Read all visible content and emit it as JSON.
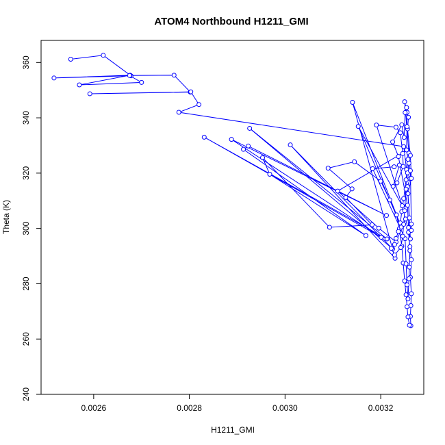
{
  "chart_data": {
    "type": "line",
    "title": "ATOM4 Northbound H1211_GMI",
    "xlabel": "H1211_GMI",
    "ylabel": "Theta (K)",
    "xlim": [
      0.00249,
      0.00329
    ],
    "ylim": [
      240,
      368
    ],
    "xticks": [
      "0.0026",
      "0.0028",
      "0.0030",
      "0.0032"
    ],
    "xtick_values": [
      0.0026,
      0.0028,
      0.003,
      0.0032
    ],
    "yticks": [
      "240",
      "260",
      "280",
      "300",
      "320",
      "340",
      "360"
    ],
    "ytick_values": [
      240,
      260,
      280,
      300,
      320,
      340,
      360
    ],
    "grid": false,
    "series": [
      {
        "color": "#0000ff",
        "marker": "open-circle",
        "points": [
          [
            0.002552,
            361.2
          ],
          [
            0.00262,
            362.6
          ],
          [
            0.002678,
            355.2
          ],
          [
            0.002517,
            354.4
          ],
          [
            0.002676,
            355.4
          ],
          [
            0.00257,
            351.9
          ],
          [
            0.0027,
            352.8
          ],
          [
            0.002675,
            355.3
          ],
          [
            0.002768,
            355.4
          ],
          [
            0.002802,
            349.3
          ],
          [
            0.002592,
            348.7
          ],
          [
            0.002803,
            349.4
          ],
          [
            0.00282,
            344.8
          ],
          [
            0.002778,
            342.0
          ],
          [
            0.003248,
            329.6
          ],
          [
            0.003254,
            321.3
          ],
          [
            0.003261,
            318.0
          ],
          [
            0.003256,
            315.1
          ],
          [
            0.003262,
            296.2
          ],
          [
            0.003252,
            303.4
          ],
          [
            0.003232,
            295.1
          ],
          [
            0.003196,
            300.1
          ],
          [
            0.00311,
            313.5
          ],
          [
            0.003256,
            328.3
          ],
          [
            0.003259,
            327.2
          ],
          [
            0.00325,
            345.8
          ],
          [
            0.003255,
            342.0
          ],
          [
            0.003258,
            340.2
          ],
          [
            0.003256,
            336.0
          ],
          [
            0.003262,
            326.4
          ],
          [
            0.003264,
            318.1
          ],
          [
            0.003257,
            312.6
          ],
          [
            0.00326,
            303.8
          ],
          [
            0.003258,
            298.6
          ],
          [
            0.003261,
            293.4
          ],
          [
            0.003264,
            288.7
          ],
          [
            0.003262,
            282.3
          ],
          [
            0.003264,
            276.4
          ],
          [
            0.003263,
            272.1
          ],
          [
            0.003262,
            268.2
          ],
          [
            0.003263,
            264.8
          ],
          [
            0.00326,
            265.0
          ],
          [
            0.003257,
            268.0
          ],
          [
            0.003255,
            271.7
          ],
          [
            0.003253,
            276.0
          ],
          [
            0.00325,
            281.0
          ],
          [
            0.003247,
            287.5
          ],
          [
            0.003244,
            293.6
          ],
          [
            0.003239,
            299.9
          ],
          [
            0.003233,
            304.9
          ],
          [
            0.003219,
            310.3
          ],
          [
            0.0032,
            317.1
          ],
          [
            0.003145,
            324.1
          ],
          [
            0.00309,
            321.8
          ],
          [
            0.00314,
            314.3
          ],
          [
            0.003127,
            311.2
          ],
          [
            0.003182,
            301.3
          ],
          [
            0.003093,
            300.4
          ],
          [
            0.002953,
            325.6
          ],
          [
            0.002968,
            319.6
          ],
          [
            0.003169,
            297.4
          ],
          [
            0.002913,
            328.6
          ],
          [
            0.002923,
            329.8
          ],
          [
            0.003212,
            304.7
          ],
          [
            0.002888,
            332.2
          ],
          [
            0.003201,
            296.8
          ],
          [
            0.002831,
            333.0
          ],
          [
            0.003213,
            296.2
          ],
          [
            0.002926,
            336.2
          ],
          [
            0.003225,
            292.6
          ],
          [
            0.003011,
            330.2
          ],
          [
            0.00323,
            289.2
          ],
          [
            0.003141,
            345.6
          ],
          [
            0.003243,
            300.5
          ],
          [
            0.003153,
            336.9
          ],
          [
            0.003245,
            308.2
          ],
          [
            0.003191,
            337.4
          ],
          [
            0.003232,
            336.6
          ],
          [
            0.003241,
            334.6
          ],
          [
            0.003246,
            327.1
          ],
          [
            0.003247,
            322.4
          ],
          [
            0.003234,
            316.5
          ],
          [
            0.003226,
            315.2
          ],
          [
            0.003239,
            322.9
          ],
          [
            0.003228,
            322.3
          ],
          [
            0.003183,
            321.6
          ],
          [
            0.003251,
            296.3
          ],
          [
            0.003253,
            287.2
          ],
          [
            0.003255,
            279.6
          ],
          [
            0.003257,
            274.5
          ],
          [
            0.003259,
            281.8
          ],
          [
            0.00326,
            286.0
          ],
          [
            0.003261,
            292.0
          ],
          [
            0.003258,
            300.3
          ],
          [
            0.003256,
            308.4
          ],
          [
            0.003237,
            326.0
          ],
          [
            0.003225,
            331.3
          ],
          [
            0.003244,
            337.5
          ],
          [
            0.003249,
            332.9
          ],
          [
            0.003251,
            341.9
          ],
          [
            0.003254,
            343.7
          ],
          [
            0.003255,
            336.8
          ],
          [
            0.003254,
            328.4
          ],
          [
            0.003257,
            325.0
          ],
          [
            0.003253,
            317.6
          ],
          [
            0.003248,
            310.8
          ],
          [
            0.003244,
            306.1
          ],
          [
            0.003241,
            302.0
          ],
          [
            0.003237,
            298.9
          ],
          [
            0.003232,
            296.4
          ],
          [
            0.003229,
            294.2
          ],
          [
            0.003222,
            292.8
          ],
          [
            0.003229,
            290.4
          ],
          [
            0.003242,
            293.1
          ],
          [
            0.003246,
            297.2
          ],
          [
            0.003248,
            301.5
          ],
          [
            0.00325,
            306.4
          ],
          [
            0.003253,
            314.2
          ],
          [
            0.003256,
            320.1
          ],
          [
            0.003259,
            323.6
          ],
          [
            0.003262,
            320.9
          ],
          [
            0.003264,
            301.6
          ],
          [
            0.003264,
            299.3
          ]
        ]
      }
    ]
  }
}
